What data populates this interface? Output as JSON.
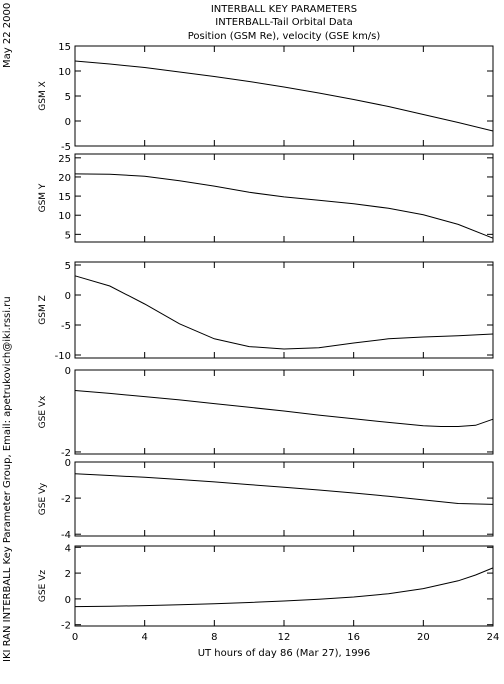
{
  "header": {
    "line1": "INTERBALL KEY PARAMETERS",
    "line2": "INTERBALL-Tail Orbital Data",
    "line3": "Position (GSM Re), velocity (GSE km/s)"
  },
  "side": {
    "date": "May 22 2000",
    "credit": "IKI RAN INTERBALL Key Parameter Group, Email: apetrukovich@iki.rssi.ru"
  },
  "chart_data": {
    "type": "line",
    "xlabel": "UT hours of day  86 (Mar 27), 1996",
    "xlim": [
      0,
      24
    ],
    "xticks": [
      0,
      4,
      8,
      12,
      16,
      20,
      24
    ],
    "xtick_labels": [
      "0",
      "4",
      "8",
      "12",
      "16",
      "20",
      "24"
    ],
    "panels": [
      {
        "ylabel": "GSM  X",
        "ylim": [
          -5,
          15
        ],
        "yticks": [
          -5,
          0,
          5,
          10,
          15
        ],
        "ytick_labels": [
          "-5",
          "0",
          "5",
          "10",
          "15"
        ],
        "x": [
          0,
          2,
          4,
          6,
          8,
          10,
          12,
          14,
          16,
          18,
          20,
          22,
          24
        ],
        "y": [
          12.0,
          11.4,
          10.7,
          9.8,
          8.9,
          7.9,
          6.8,
          5.6,
          4.3,
          2.9,
          1.3,
          -0.3,
          -2.0
        ]
      },
      {
        "ylabel": "GSM  Y",
        "ylim": [
          3,
          26
        ],
        "yticks": [
          5,
          10,
          15,
          20,
          25
        ],
        "ytick_labels": [
          "5",
          "10",
          "15",
          "20",
          "25"
        ],
        "x": [
          0,
          2,
          4,
          6,
          8,
          10,
          12,
          14,
          16,
          18,
          20,
          22,
          24
        ],
        "y": [
          20.8,
          20.7,
          20.2,
          19.0,
          17.6,
          16.0,
          14.8,
          13.9,
          13.0,
          11.8,
          10.1,
          7.6,
          4.0
        ]
      },
      {
        "ylabel": "GSM  Z",
        "ylim": [
          -10.5,
          5.5
        ],
        "yticks": [
          -10,
          -5,
          0,
          5
        ],
        "ytick_labels": [
          "-10",
          "-5",
          "0",
          "5"
        ],
        "x": [
          0,
          2,
          4,
          6,
          8,
          10,
          12,
          14,
          16,
          18,
          20,
          22,
          24
        ],
        "y": [
          3.2,
          1.5,
          -1.5,
          -4.8,
          -7.3,
          -8.6,
          -9.0,
          -8.8,
          -8.0,
          -7.3,
          -7.0,
          -6.8,
          -6.5
        ]
      },
      {
        "ylabel": "GSE  Vx",
        "ylim": [
          -2.05,
          0
        ],
        "yticks": [
          -2,
          0
        ],
        "ytick_labels": [
          "-2",
          "0"
        ],
        "x": [
          0,
          2,
          4,
          6,
          8,
          10,
          12,
          14,
          16,
          18,
          20,
          21,
          22,
          23,
          24
        ],
        "y": [
          -0.5,
          -0.57,
          -0.65,
          -0.73,
          -0.82,
          -0.91,
          -1.0,
          -1.1,
          -1.19,
          -1.28,
          -1.36,
          -1.38,
          -1.38,
          -1.35,
          -1.2
        ]
      },
      {
        "ylabel": "GSE  Vy",
        "ylim": [
          -4.1,
          0
        ],
        "yticks": [
          -4,
          -2,
          0
        ],
        "ytick_labels": [
          "-4",
          "-2",
          "0"
        ],
        "x": [
          0,
          2,
          4,
          6,
          8,
          10,
          12,
          14,
          16,
          18,
          20,
          22,
          24
        ],
        "y": [
          -0.65,
          -0.75,
          -0.85,
          -0.97,
          -1.1,
          -1.25,
          -1.4,
          -1.55,
          -1.72,
          -1.9,
          -2.1,
          -2.3,
          -2.35
        ]
      },
      {
        "ylabel": "GSE  Vz",
        "ylim": [
          -2.1,
          4.1
        ],
        "yticks": [
          -2,
          0,
          2,
          4
        ],
        "ytick_labels": [
          "-2",
          "0",
          "2",
          "4"
        ],
        "x": [
          0,
          2,
          4,
          6,
          8,
          10,
          12,
          14,
          16,
          18,
          20,
          22,
          23,
          24
        ],
        "y": [
          -0.6,
          -0.57,
          -0.52,
          -0.45,
          -0.37,
          -0.28,
          -0.16,
          -0.02,
          0.15,
          0.4,
          0.8,
          1.4,
          1.85,
          2.4
        ]
      }
    ]
  }
}
